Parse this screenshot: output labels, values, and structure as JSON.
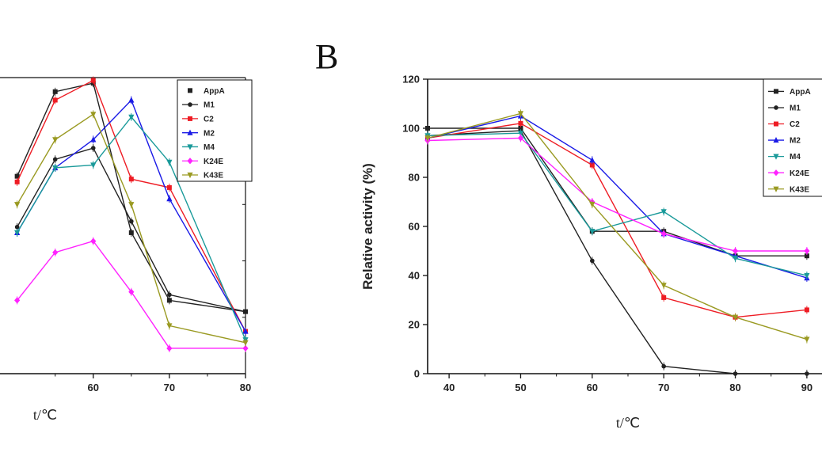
{
  "panel_b_letter": "B",
  "legend_labels": [
    "AppA",
    "M1",
    "C2",
    "M2",
    "M4",
    "K24E",
    "K43E"
  ],
  "colors": {
    "AppA": "#222222",
    "M1": "#222222",
    "C2": "#ee1c24",
    "M2": "#1a1ae6",
    "M4": "#1a9a9a",
    "K24E": "#ff22ff",
    "K43E": "#9a9a22"
  },
  "chart_data": [
    {
      "type": "line",
      "panel": "A",
      "xlabel": "t/℃",
      "ylabel": "",
      "x_ticks": [
        "60",
        "70",
        "80"
      ],
      "x": [
        50,
        55,
        60,
        65,
        70,
        80
      ],
      "xlim": [
        46.5,
        80
      ],
      "ylim": [
        0,
        105
      ],
      "grid": false,
      "legend_position": "top-right",
      "series": [
        {
          "name": "AppA",
          "values": [
            70,
            100,
            103,
            50,
            26,
            22
          ]
        },
        {
          "name": "M1",
          "values": [
            52,
            76,
            80,
            54,
            28,
            22
          ]
        },
        {
          "name": "C2",
          "values": [
            68,
            97,
            104,
            69,
            66,
            15
          ]
        },
        {
          "name": "M2",
          "values": [
            50,
            73,
            83,
            97,
            62,
            15
          ]
        },
        {
          "name": "M4",
          "values": [
            50,
            73,
            74,
            91,
            75,
            12
          ]
        },
        {
          "name": "K24E",
          "values": [
            26,
            43,
            47,
            29,
            9,
            9
          ]
        },
        {
          "name": "K43E",
          "values": [
            60,
            83,
            92,
            60,
            17,
            11
          ]
        }
      ]
    },
    {
      "type": "line",
      "panel": "B",
      "xlabel": "t/℃",
      "ylabel": "Relative activity (%)",
      "x_ticks": [
        "40",
        "50",
        "60",
        "70",
        "80",
        "90"
      ],
      "y_ticks": [
        "0",
        "20",
        "40",
        "60",
        "80",
        "100",
        "120"
      ],
      "x": [
        37,
        50,
        60,
        70,
        80,
        90
      ],
      "xlim": [
        37,
        93
      ],
      "ylim": [
        0,
        120
      ],
      "grid": false,
      "legend_position": "top-right",
      "series": [
        {
          "name": "AppA",
          "values": [
            100,
            100,
            58,
            58,
            48,
            48
          ]
        },
        {
          "name": "M1",
          "values": [
            97,
            99,
            46,
            3,
            0,
            0
          ]
        },
        {
          "name": "C2",
          "values": [
            96,
            102,
            85,
            31,
            23,
            26
          ]
        },
        {
          "name": "M2",
          "values": [
            96,
            105,
            87,
            57,
            48,
            39
          ]
        },
        {
          "name": "M4",
          "values": [
            97,
            98,
            58,
            66,
            47,
            40
          ]
        },
        {
          "name": "K24E",
          "values": [
            95,
            96,
            70,
            57,
            50,
            50
          ]
        },
        {
          "name": "K43E",
          "values": [
            96,
            106,
            69,
            36,
            23,
            14
          ]
        }
      ]
    }
  ]
}
